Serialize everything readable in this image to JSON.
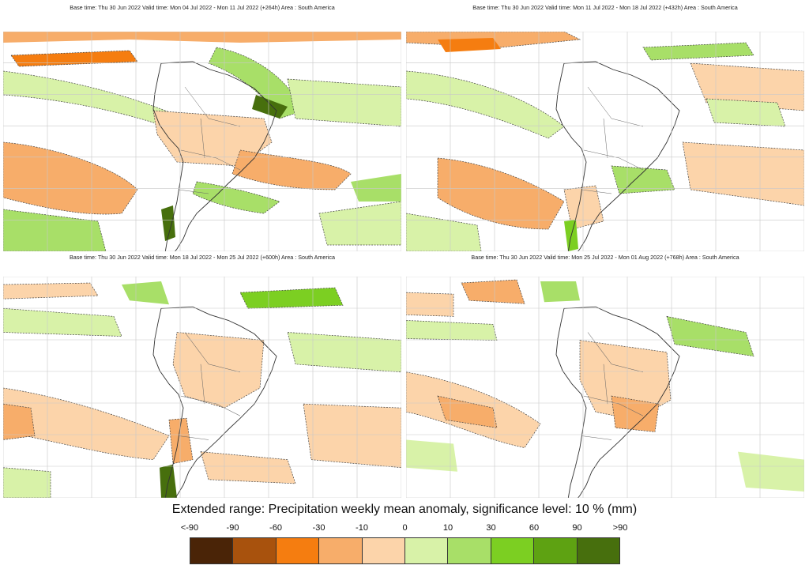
{
  "panels": [
    {
      "caption": "Base time: Thu 30 Jun 2022 Valid time: Mon 04 Jul 2022 - Mon 11 Jul 2022 (+264h) Area : South America",
      "style": "wet"
    },
    {
      "caption": "Base time: Thu 30 Jun 2022 Valid time: Mon 11 Jul 2022 - Mon 18 Jul 2022 (+432h) Area : South America",
      "style": "mixed"
    },
    {
      "caption": "Base time: Thu 30 Jun 2022 Valid time: Mon 18 Jul 2022 - Mon 25 Jul 2022 (+600h) Area : South America",
      "style": "dry"
    },
    {
      "caption": "Base time: Thu 30 Jun 2022 Valid time: Mon 25 Jul 2022 - Mon 01 Aug 2022 (+768h) Area : South America",
      "style": "light"
    }
  ],
  "title": "Extended range: Precipitation weekly mean anomaly, significance level: 10 % (mm)",
  "legend": {
    "labels": [
      "<-90",
      "-90",
      "-60",
      "-30",
      "-10",
      "0",
      "10",
      "30",
      "60",
      "90",
      ">90"
    ],
    "colors": [
      "#4a2407",
      "#a8520d",
      "#f57d10",
      "#f7ad6a",
      "#fcd4aa",
      "#d8f2a8",
      "#a8df68",
      "#7ccf22",
      "#5ea212",
      "#476f0d"
    ]
  },
  "map_colors": {
    "neg_strong": "#f57d10",
    "neg_mid": "#f7ad6a",
    "neg_light": "#fcd4aa",
    "pos_light": "#d8f2a8",
    "pos_mid": "#a8df68",
    "pos_strong": "#7ccf22",
    "pos_dark": "#476f0d",
    "coast": "#333333",
    "grid": "#c8c8c8"
  }
}
